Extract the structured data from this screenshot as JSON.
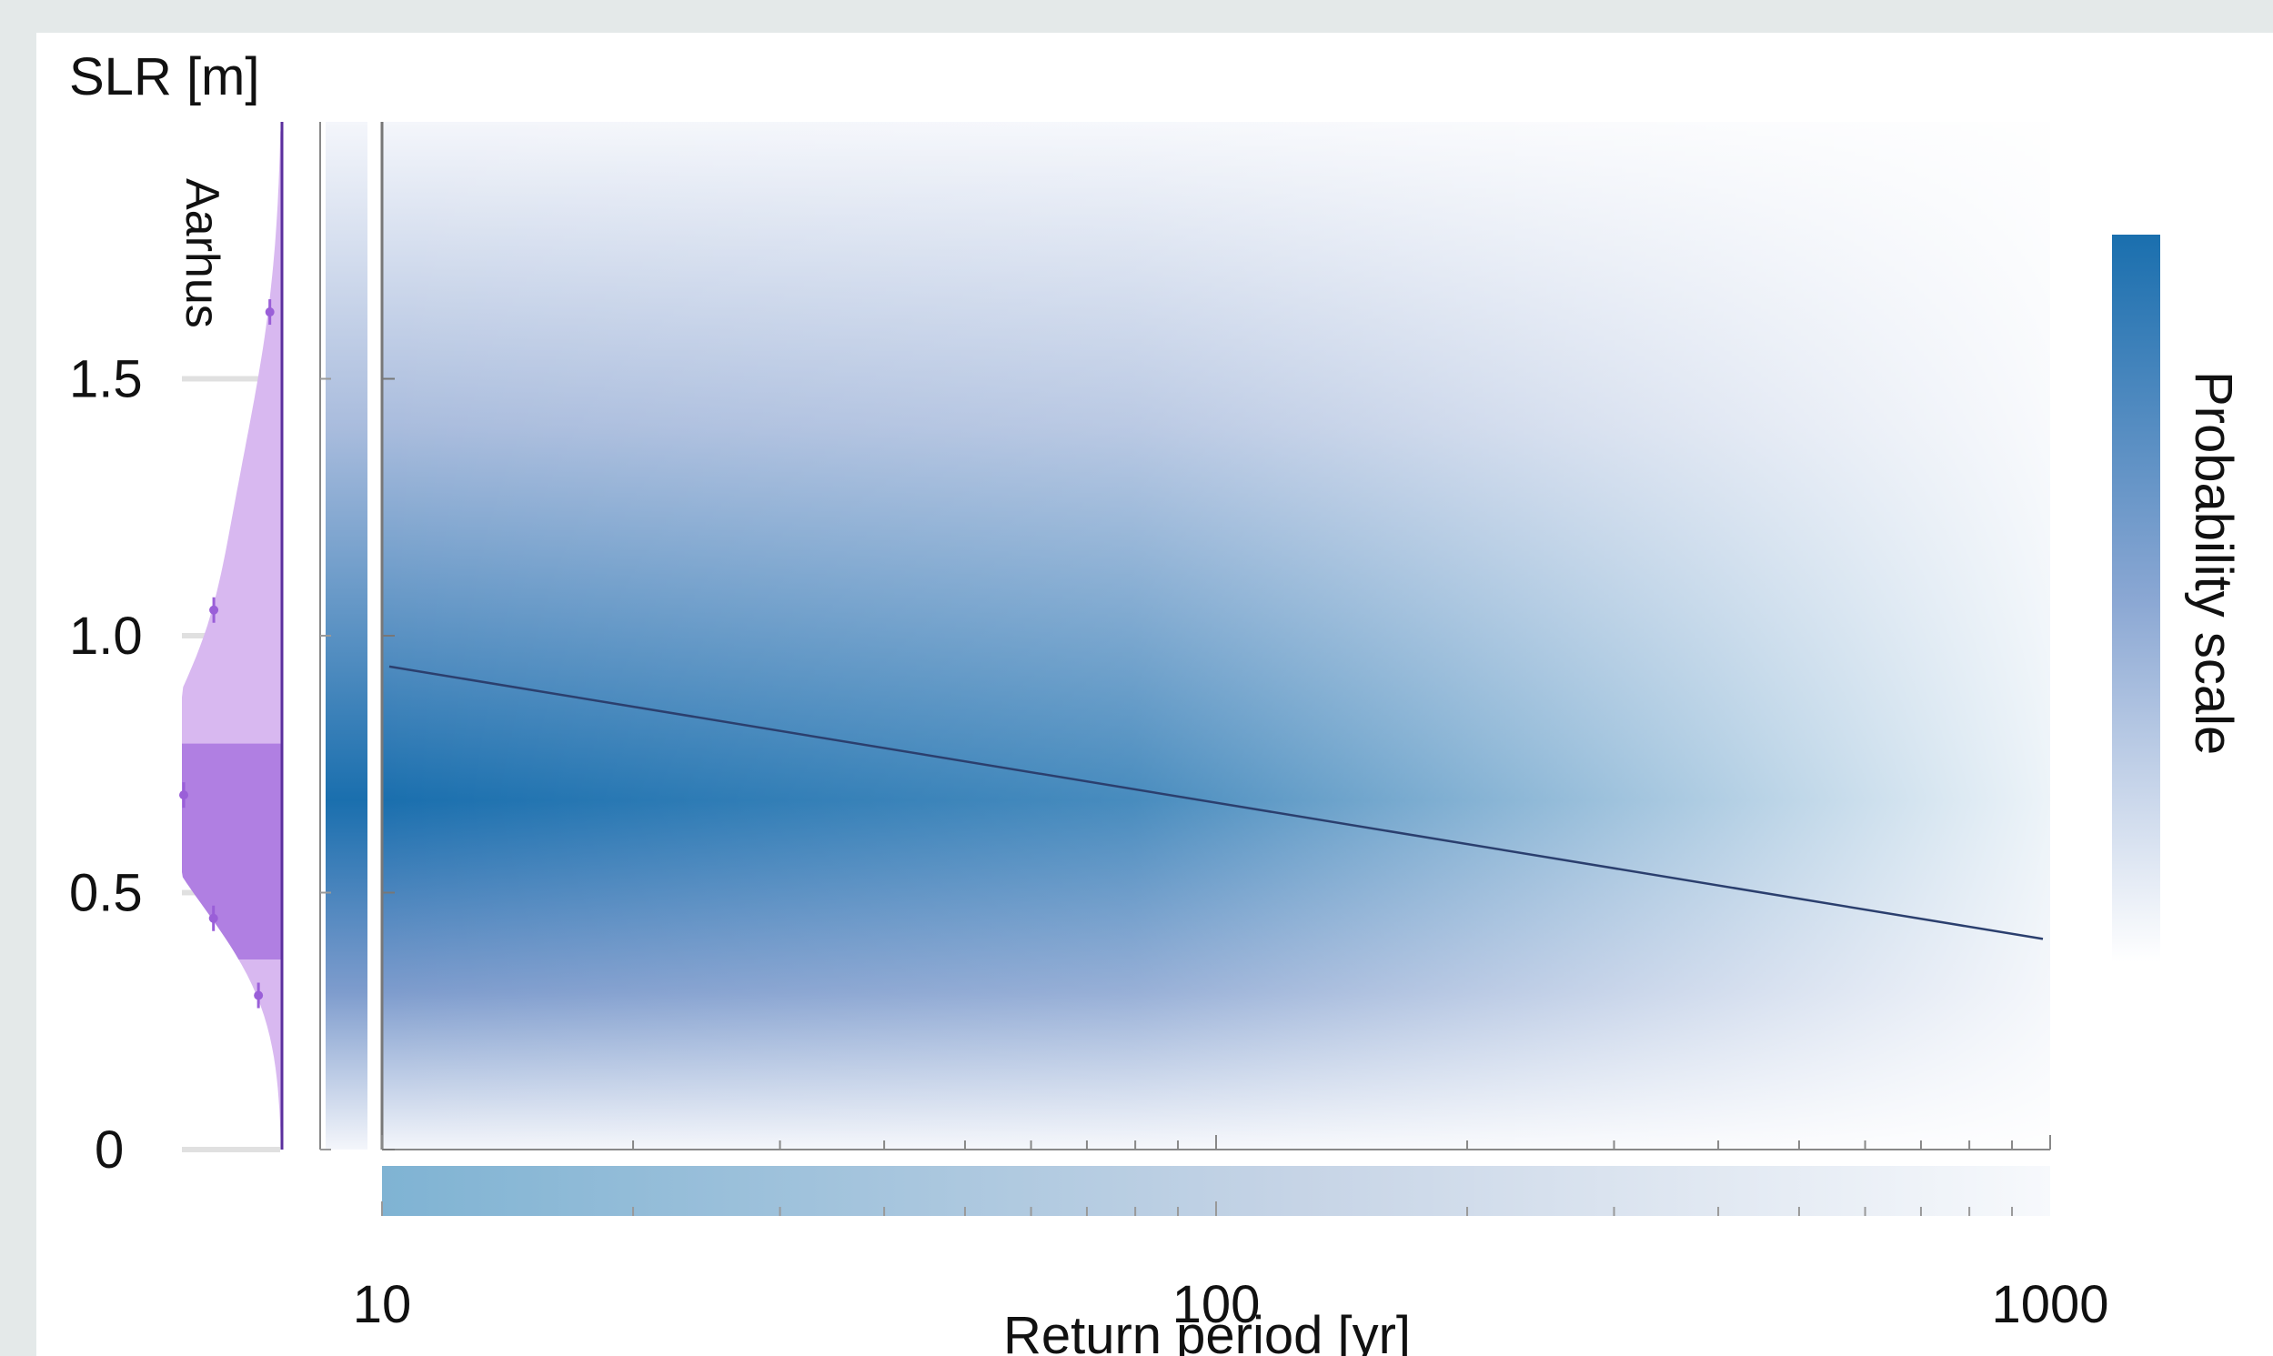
{
  "chart_data": {
    "type": "heatmap",
    "title": "",
    "ylabel": "SLR [m]",
    "xlabel": "Return period [yr]",
    "xscale": "log",
    "xlim": [
      10,
      1000
    ],
    "ylim": [
      0,
      2.0
    ],
    "x_ticks": [
      "10",
      "100",
      "1000"
    ],
    "y_ticks": [
      "0",
      "0.5",
      "1.0",
      "1.5"
    ],
    "colorbar_label": "Probability scale",
    "density_peak_slr": 0.68,
    "line": {
      "x": [
        10,
        1000
      ],
      "y": [
        0.94,
        0.41
      ]
    },
    "marginal": {
      "location": "Aarhus",
      "color": "#9a5fd8",
      "central_range": [
        0.37,
        0.79
      ],
      "markers": [
        0.3,
        0.45,
        0.69,
        1.05,
        1.63
      ]
    },
    "colors": {
      "dense": "#1a6fae",
      "sparse": "#f6f8fc",
      "line": "#2b3f6e"
    },
    "grid": false,
    "legend": "colorbar-right"
  }
}
